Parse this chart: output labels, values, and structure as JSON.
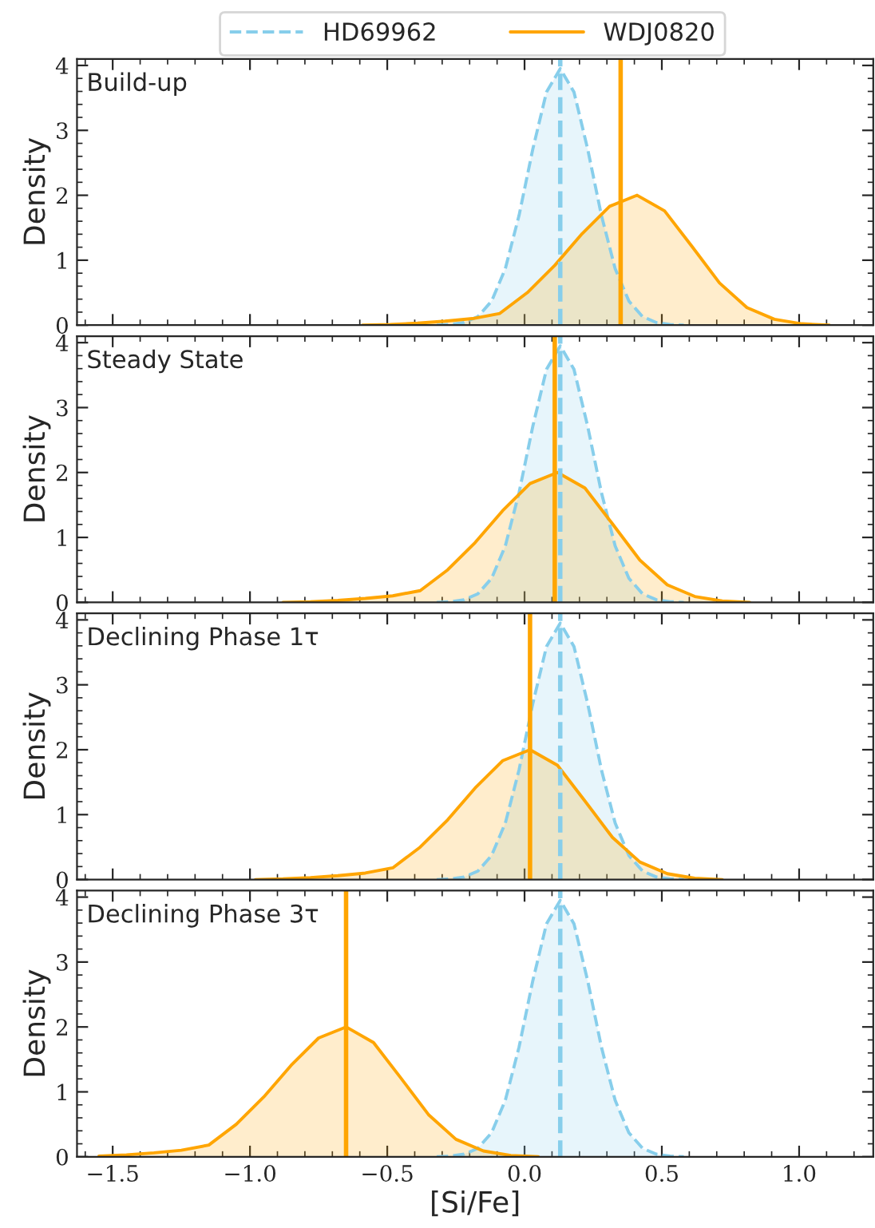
{
  "chart_data": [
    {
      "type": "area",
      "ylabel": "Density",
      "annotations": [
        "Build-up"
      ],
      "xlim": [
        -1.63,
        1.27
      ],
      "xticks": [
        {
          "value": -1.5,
          "label": null
        },
        {
          "value": -1.0,
          "label": null
        },
        {
          "value": -0.5,
          "label": null
        },
        {
          "value": 0.0,
          "label": null
        },
        {
          "value": 0.5,
          "label": null
        },
        {
          "value": 1.0,
          "label": null
        }
      ],
      "ylim": [
        0,
        4.1
      ],
      "yticks": [
        0,
        1,
        2,
        3,
        4
      ],
      "tick_labels": "y",
      "legend": "top",
      "line_style": "solid",
      "series": [
        {
          "name": "HD69962",
          "color": "#87ceeb",
          "line_style": "dashed",
          "x": [
            -0.32,
            -0.27,
            -0.22,
            -0.17,
            -0.12,
            -0.07,
            -0.02,
            0.03,
            0.08,
            0.13,
            0.18,
            0.23,
            0.28,
            0.33,
            0.38,
            0.43,
            0.48,
            0.53,
            0.58
          ],
          "values": [
            0,
            0.01,
            0.04,
            0.13,
            0.37,
            0.87,
            1.69,
            2.71,
            3.59,
            3.95,
            3.59,
            2.71,
            1.69,
            0.87,
            0.37,
            0.13,
            0.04,
            0.01,
            0
          ]
        },
        {
          "name": "WDJ0820",
          "color": "#ffa500",
          "x": [
            -0.59,
            -0.49,
            -0.39,
            -0.29,
            -0.19,
            -0.09,
            0.01,
            0.11,
            0.21,
            0.31,
            0.41,
            0.51,
            0.61,
            0.71,
            0.81,
            0.91,
            1.01,
            1.11
          ],
          "values": [
            0,
            0.01,
            0.03,
            0.06,
            0.1,
            0.18,
            0.5,
            0.92,
            1.41,
            1.83,
            2.0,
            1.76,
            1.21,
            0.65,
            0.27,
            0.09,
            0.02,
            0
          ]
        }
      ],
      "ref_lines": [
        {
          "axis": "x",
          "value": 0.13,
          "color": "#87ceeb",
          "line_style": "dashed"
        },
        {
          "axis": "x",
          "value": 0.35,
          "color": "#ffa500",
          "line_style": "solid"
        }
      ]
    },
    {
      "type": "area",
      "ylabel": "Density",
      "annotations": [
        "Steady State"
      ],
      "xlim": [
        -1.63,
        1.27
      ],
      "xticks": [
        {
          "value": -1.5,
          "label": null
        },
        {
          "value": -1.0,
          "label": null
        },
        {
          "value": -0.5,
          "label": null
        },
        {
          "value": 0.0,
          "label": null
        },
        {
          "value": 0.5,
          "label": null
        },
        {
          "value": 1.0,
          "label": null
        }
      ],
      "ylim": [
        0,
        4.1
      ],
      "yticks": [
        0,
        1,
        2,
        3,
        4
      ],
      "tick_labels": "y",
      "line_style": "solid",
      "series": [
        {
          "color": "#87ceeb",
          "line_style": "dashed",
          "x": [
            -0.32,
            -0.27,
            -0.22,
            -0.17,
            -0.12,
            -0.07,
            -0.02,
            0.03,
            0.08,
            0.13,
            0.18,
            0.23,
            0.28,
            0.33,
            0.38,
            0.43,
            0.48,
            0.53,
            0.58
          ],
          "values": [
            0,
            0.01,
            0.04,
            0.13,
            0.37,
            0.87,
            1.69,
            2.71,
            3.59,
            3.95,
            3.59,
            2.71,
            1.69,
            0.87,
            0.37,
            0.13,
            0.04,
            0.01,
            0
          ]
        },
        {
          "color": "#ffa500",
          "x": [
            -0.88,
            -0.78,
            -0.68,
            -0.58,
            -0.48,
            -0.38,
            -0.28,
            -0.18,
            -0.08,
            0.02,
            0.12,
            0.22,
            0.32,
            0.42,
            0.52,
            0.62,
            0.72,
            0.82
          ],
          "values": [
            0,
            0.01,
            0.03,
            0.06,
            0.1,
            0.18,
            0.5,
            0.92,
            1.41,
            1.83,
            2.0,
            1.76,
            1.21,
            0.65,
            0.27,
            0.09,
            0.02,
            0
          ]
        }
      ],
      "ref_lines": [
        {
          "axis": "x",
          "value": 0.13,
          "color": "#87ceeb",
          "line_style": "dashed"
        },
        {
          "axis": "x",
          "value": 0.11,
          "color": "#ffa500",
          "line_style": "solid"
        }
      ]
    },
    {
      "type": "area",
      "ylabel": "Density",
      "annotations": [
        "Declining Phase 1τ"
      ],
      "xlim": [
        -1.63,
        1.27
      ],
      "xticks": [
        {
          "value": -1.5,
          "label": null
        },
        {
          "value": -1.0,
          "label": null
        },
        {
          "value": -0.5,
          "label": null
        },
        {
          "value": 0.0,
          "label": null
        },
        {
          "value": 0.5,
          "label": null
        },
        {
          "value": 1.0,
          "label": null
        }
      ],
      "ylim": [
        0,
        4.1
      ],
      "yticks": [
        0,
        1,
        2,
        3,
        4
      ],
      "tick_labels": "y",
      "line_style": "solid",
      "series": [
        {
          "color": "#87ceeb",
          "line_style": "dashed",
          "x": [
            -0.32,
            -0.27,
            -0.22,
            -0.17,
            -0.12,
            -0.07,
            -0.02,
            0.03,
            0.08,
            0.13,
            0.18,
            0.23,
            0.28,
            0.33,
            0.38,
            0.43,
            0.48,
            0.53,
            0.58
          ],
          "values": [
            0,
            0.01,
            0.04,
            0.13,
            0.37,
            0.87,
            1.69,
            2.71,
            3.59,
            3.95,
            3.59,
            2.71,
            1.69,
            0.87,
            0.37,
            0.13,
            0.04,
            0.01,
            0
          ]
        },
        {
          "color": "#ffa500",
          "x": [
            -0.98,
            -0.88,
            -0.78,
            -0.68,
            -0.58,
            -0.48,
            -0.38,
            -0.28,
            -0.18,
            -0.08,
            0.02,
            0.12,
            0.22,
            0.32,
            0.42,
            0.52,
            0.62,
            0.72
          ],
          "values": [
            0,
            0.01,
            0.03,
            0.06,
            0.1,
            0.18,
            0.5,
            0.92,
            1.41,
            1.83,
            2.0,
            1.76,
            1.21,
            0.65,
            0.27,
            0.09,
            0.02,
            0
          ]
        }
      ],
      "ref_lines": [
        {
          "axis": "x",
          "value": 0.13,
          "color": "#87ceeb",
          "line_style": "dashed"
        },
        {
          "axis": "x",
          "value": 0.02,
          "color": "#ffa500",
          "line_style": "solid"
        }
      ]
    },
    {
      "type": "area",
      "ylabel": "Density",
      "xlabel": "[Si/Fe]",
      "annotations": [
        "Declining Phase 3τ"
      ],
      "xlim": [
        -1.63,
        1.27
      ],
      "xticks": [
        {
          "value": -1.5,
          "label": "−1.5"
        },
        {
          "value": -1.0,
          "label": "−1.0"
        },
        {
          "value": -0.5,
          "label": "−0.5"
        },
        {
          "value": 0.0,
          "label": "0.0"
        },
        {
          "value": 0.5,
          "label": "0.5"
        },
        {
          "value": 1.0,
          "label": "1.0"
        }
      ],
      "ylim": [
        0,
        4.1
      ],
      "yticks": [
        0,
        1,
        2,
        3,
        4
      ],
      "line_style": "solid",
      "series": [
        {
          "color": "#87ceeb",
          "line_style": "dashed",
          "x": [
            -0.32,
            -0.27,
            -0.22,
            -0.17,
            -0.12,
            -0.07,
            -0.02,
            0.03,
            0.08,
            0.13,
            0.18,
            0.23,
            0.28,
            0.33,
            0.38,
            0.43,
            0.48,
            0.53,
            0.58
          ],
          "values": [
            0,
            0.01,
            0.04,
            0.13,
            0.37,
            0.87,
            1.69,
            2.71,
            3.59,
            3.95,
            3.59,
            2.71,
            1.69,
            0.87,
            0.37,
            0.13,
            0.04,
            0.01,
            0
          ]
        },
        {
          "color": "#ffa500",
          "x": [
            -1.55,
            -1.45,
            -1.35,
            -1.25,
            -1.15,
            -1.05,
            -0.95,
            -0.85,
            -0.75,
            -0.65,
            -0.55,
            -0.45,
            -0.35,
            -0.25,
            -0.15,
            -0.05,
            0.05
          ],
          "values": [
            0.01,
            0.03,
            0.06,
            0.1,
            0.18,
            0.5,
            0.92,
            1.41,
            1.83,
            2.0,
            1.76,
            1.21,
            0.65,
            0.27,
            0.09,
            0.02,
            0
          ]
        }
      ],
      "ref_lines": [
        {
          "axis": "x",
          "value": 0.13,
          "color": "#87ceeb",
          "line_style": "dashed"
        },
        {
          "axis": "x",
          "value": -0.65,
          "color": "#ffa500",
          "line_style": "solid"
        }
      ]
    }
  ]
}
